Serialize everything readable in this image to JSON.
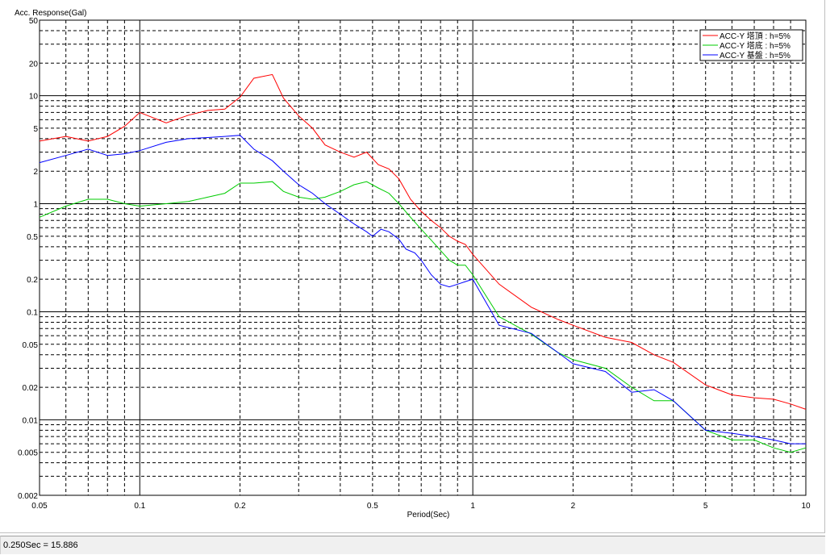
{
  "status": {
    "text": "0.250Sec = 15.886"
  },
  "chart_data": {
    "type": "line",
    "ylabel": "Acc. Response(Gal)",
    "xlabel": "Period(Sec)",
    "x_scale": "log",
    "y_scale": "log",
    "xlim": [
      0.05,
      10
    ],
    "ylim": [
      0.002,
      50
    ],
    "grid": true,
    "legend_position": "top-right",
    "x_ticks": [
      {
        "value": 0.05,
        "label": "0.05"
      },
      {
        "value": 0.1,
        "label": "0.1"
      },
      {
        "value": 0.2,
        "label": "0.2"
      },
      {
        "value": 0.5,
        "label": "0.5"
      },
      {
        "value": 1,
        "label": "1"
      },
      {
        "value": 2,
        "label": "2"
      },
      {
        "value": 5,
        "label": "5"
      },
      {
        "value": 10,
        "label": "10"
      }
    ],
    "y_ticks": [
      {
        "value": 50,
        "label": "50"
      },
      {
        "value": 20,
        "label": "20"
      },
      {
        "value": 10,
        "label": "10"
      },
      {
        "value": 5,
        "label": "5"
      },
      {
        "value": 2,
        "label": "2"
      },
      {
        "value": 1,
        "label": "1"
      },
      {
        "value": 0.5,
        "label": "0.5"
      },
      {
        "value": 0.2,
        "label": "0.2"
      },
      {
        "value": 0.1,
        "label": "0.1"
      },
      {
        "value": 0.05,
        "label": "0.05"
      },
      {
        "value": 0.02,
        "label": "0.02"
      },
      {
        "value": 0.01,
        "label": "0.01"
      },
      {
        "value": 0.005,
        "label": "0.005"
      },
      {
        "value": 0.002,
        "label": "0.002"
      }
    ],
    "series": [
      {
        "name": "ACC-Y 塔頂 : h=5%",
        "color": "#ff0000",
        "x": [
          0.05,
          0.06,
          0.07,
          0.08,
          0.09,
          0.1,
          0.12,
          0.14,
          0.16,
          0.18,
          0.2,
          0.22,
          0.25,
          0.27,
          0.3,
          0.33,
          0.36,
          0.4,
          0.44,
          0.48,
          0.52,
          0.56,
          0.6,
          0.65,
          0.7,
          0.75,
          0.8,
          0.85,
          0.9,
          0.95,
          1.0,
          1.2,
          1.5,
          1.8,
          2.0,
          2.5,
          3.0,
          3.5,
          4.0,
          5.0,
          6.0,
          7.0,
          8.0,
          9.0,
          10.0
        ],
        "y": [
          3.8,
          4.2,
          3.8,
          4.2,
          5.2,
          7.0,
          5.6,
          6.6,
          7.3,
          7.5,
          9.7,
          14.5,
          15.7,
          9.5,
          6.5,
          5.0,
          3.5,
          3.0,
          2.7,
          3.0,
          2.3,
          2.1,
          1.7,
          1.1,
          0.85,
          0.7,
          0.6,
          0.5,
          0.45,
          0.42,
          0.34,
          0.18,
          0.11,
          0.085,
          0.075,
          0.058,
          0.052,
          0.04,
          0.034,
          0.021,
          0.017,
          0.016,
          0.0155,
          0.014,
          0.0125
        ]
      },
      {
        "name": "ACC-Y 塔底 : h=5%",
        "color": "#00cc00",
        "x": [
          0.05,
          0.06,
          0.07,
          0.08,
          0.09,
          0.1,
          0.12,
          0.14,
          0.16,
          0.18,
          0.2,
          0.22,
          0.25,
          0.27,
          0.3,
          0.33,
          0.36,
          0.4,
          0.44,
          0.48,
          0.52,
          0.56,
          0.6,
          0.65,
          0.7,
          0.75,
          0.8,
          0.85,
          0.9,
          0.95,
          1.0,
          1.2,
          1.5,
          1.8,
          2.0,
          2.5,
          3.0,
          3.5,
          4.0,
          5.0,
          6.0,
          7.0,
          8.0,
          9.0,
          10.0
        ],
        "y": [
          0.75,
          0.95,
          1.1,
          1.1,
          1.0,
          0.95,
          1.0,
          1.05,
          1.15,
          1.25,
          1.55,
          1.55,
          1.6,
          1.3,
          1.15,
          1.1,
          1.15,
          1.3,
          1.5,
          1.6,
          1.4,
          1.25,
          1.0,
          0.75,
          0.58,
          0.46,
          0.37,
          0.3,
          0.27,
          0.27,
          0.22,
          0.09,
          0.062,
          0.042,
          0.036,
          0.03,
          0.02,
          0.015,
          0.015,
          0.008,
          0.0065,
          0.0065,
          0.0055,
          0.005,
          0.0055
        ]
      },
      {
        "name": "ACC-Y 基盤 : h=5%",
        "color": "#0000ff",
        "x": [
          0.05,
          0.06,
          0.07,
          0.08,
          0.09,
          0.1,
          0.12,
          0.14,
          0.16,
          0.18,
          0.2,
          0.22,
          0.25,
          0.27,
          0.3,
          0.33,
          0.36,
          0.4,
          0.44,
          0.48,
          0.5,
          0.53,
          0.56,
          0.6,
          0.63,
          0.67,
          0.7,
          0.75,
          0.8,
          0.85,
          0.9,
          0.95,
          1.0,
          1.2,
          1.5,
          1.8,
          2.0,
          2.5,
          3.0,
          3.5,
          4.0,
          5.0,
          6.0,
          7.0,
          8.0,
          9.0,
          10.0
        ],
        "y": [
          2.4,
          2.8,
          3.2,
          2.8,
          2.9,
          3.1,
          3.7,
          4.0,
          4.1,
          4.2,
          4.3,
          3.2,
          2.5,
          2.0,
          1.5,
          1.25,
          1.0,
          0.8,
          0.65,
          0.55,
          0.5,
          0.58,
          0.55,
          0.47,
          0.38,
          0.35,
          0.3,
          0.22,
          0.18,
          0.17,
          0.18,
          0.19,
          0.2,
          0.075,
          0.063,
          0.042,
          0.033,
          0.028,
          0.018,
          0.019,
          0.015,
          0.008,
          0.0075,
          0.007,
          0.0065,
          0.006,
          0.006
        ]
      }
    ]
  }
}
